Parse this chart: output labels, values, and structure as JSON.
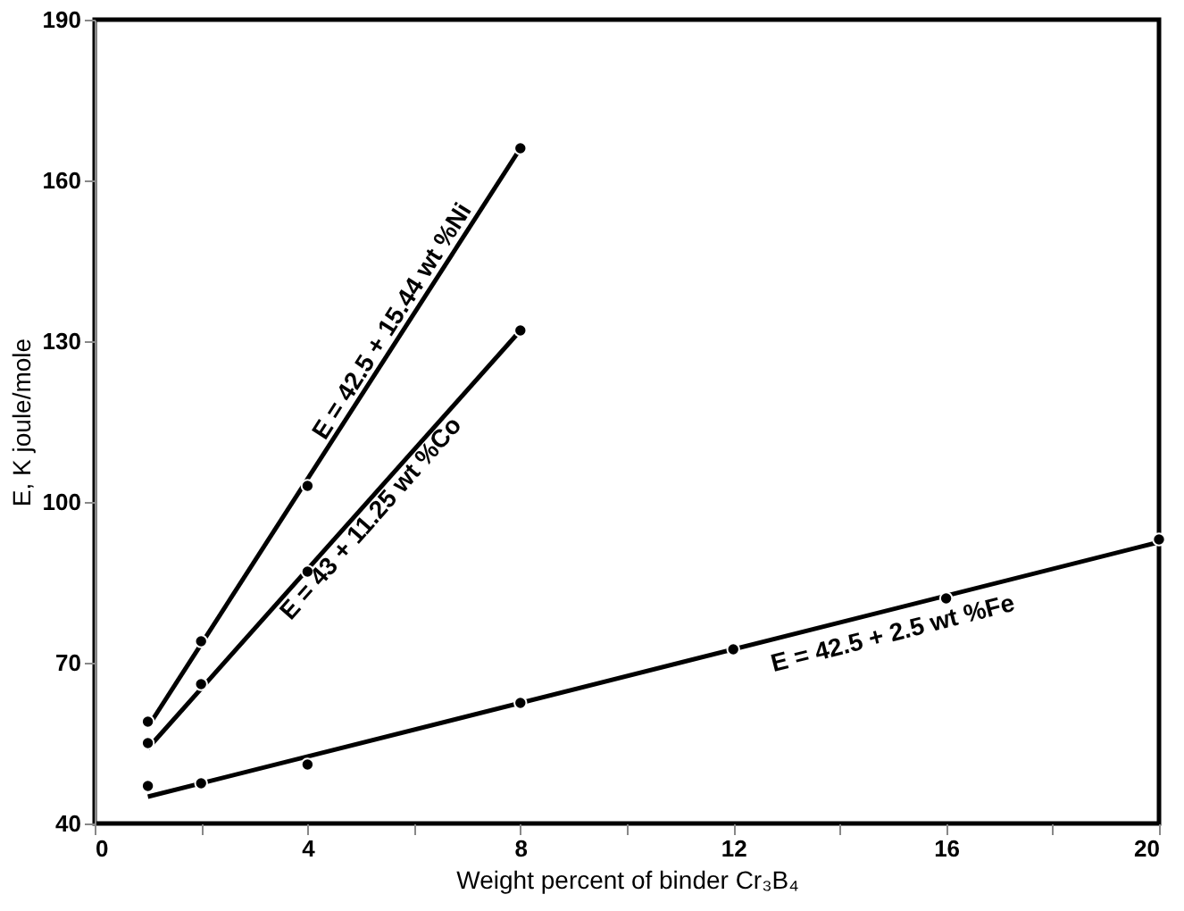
{
  "chart_data": {
    "type": "scatter",
    "xlabel": "Weight percent of binder Cr₃B₄",
    "ylabel": "E, K joule/mole",
    "xlim": [
      0,
      20
    ],
    "ylim": [
      40,
      190
    ],
    "xticks": [
      0,
      {
        "value": 2,
        "label": null
      },
      4,
      {
        "value": 6,
        "label": null
      },
      8,
      {
        "value": 10,
        "label": null
      },
      12,
      {
        "value": 14,
        "label": null
      },
      16,
      {
        "value": 18,
        "label": null
      },
      20
    ],
    "yticks": [
      40,
      70,
      100,
      130,
      160,
      190
    ],
    "grid": false,
    "marker": "circle",
    "series": [
      {
        "color": "#000000",
        "x": [
          1,
          2,
          4,
          8
        ],
        "values": [
          59,
          74,
          103,
          166
        ]
      },
      {
        "color": "#000000",
        "x": [
          1,
          2,
          4,
          8
        ],
        "values": [
          55,
          66,
          87,
          132
        ]
      },
      {
        "color": "#000000",
        "x": [
          1,
          2,
          4,
          8,
          12,
          16,
          20
        ],
        "values": [
          47,
          47.5,
          51,
          62.5,
          72.5,
          82,
          93
        ]
      },
      {
        "type": "line",
        "marker": "none",
        "color": "#000000",
        "x": [
          1,
          8
        ],
        "values": [
          58,
          166
        ]
      },
      {
        "type": "line",
        "marker": "none",
        "color": "#000000",
        "x": [
          1,
          8
        ],
        "values": [
          54,
          132
        ]
      },
      {
        "type": "line",
        "marker": "none",
        "color": "#000000",
        "x": [
          1,
          20
        ],
        "values": [
          45,
          92.5
        ]
      }
    ],
    "annotations": [
      {
        "text": "E = 42.5 + 15.44 wt %Ni",
        "x": 5.6,
        "y": 129
      },
      {
        "text": "E = 43 + 11.25 wt %Co",
        "x": 5.2,
        "y": 101.5
      },
      {
        "text": "E = 42.5 + 2.5 wt %Fe",
        "x": 15,
        "y": 80
      }
    ]
  }
}
